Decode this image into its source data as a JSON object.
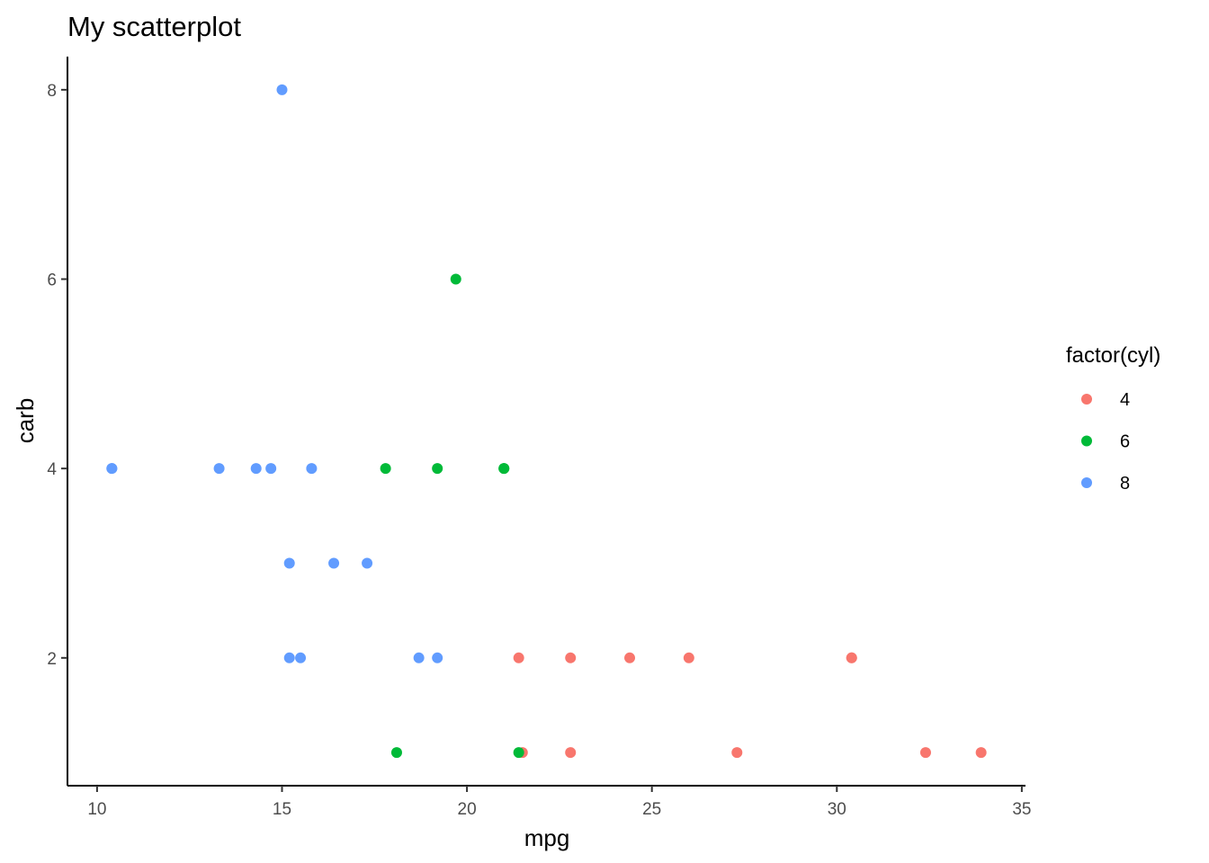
{
  "chart_data": {
    "type": "scatter",
    "title": "My scatterplot",
    "xlabel": "mpg",
    "ylabel": "carb",
    "xlim": [
      9.2,
      35.1
    ],
    "ylim": [
      0.65,
      8.35
    ],
    "xticks": [
      10,
      15,
      20,
      25,
      30,
      35
    ],
    "yticks": [
      2,
      4,
      6,
      8
    ],
    "grid": false,
    "legend": {
      "title": "factor(cyl)",
      "placement": "right"
    },
    "series": [
      {
        "name": "4",
        "color": "#F8766D",
        "points": [
          [
            22.8,
            1
          ],
          [
            24.4,
            2
          ],
          [
            22.8,
            2
          ],
          [
            32.4,
            1
          ],
          [
            30.4,
            2
          ],
          [
            33.9,
            1
          ],
          [
            21.5,
            1
          ],
          [
            27.3,
            1
          ],
          [
            26.0,
            2
          ],
          [
            30.4,
            2
          ],
          [
            21.4,
            2
          ]
        ]
      },
      {
        "name": "6",
        "color": "#00BA38",
        "points": [
          [
            21.0,
            4
          ],
          [
            21.0,
            4
          ],
          [
            21.4,
            1
          ],
          [
            18.1,
            1
          ],
          [
            19.2,
            4
          ],
          [
            17.8,
            4
          ],
          [
            19.7,
            6
          ]
        ]
      },
      {
        "name": "8",
        "color": "#619CFF",
        "points": [
          [
            18.7,
            2
          ],
          [
            14.3,
            4
          ],
          [
            16.4,
            3
          ],
          [
            17.3,
            3
          ],
          [
            15.2,
            3
          ],
          [
            10.4,
            4
          ],
          [
            10.4,
            4
          ],
          [
            14.7,
            4
          ],
          [
            15.5,
            2
          ],
          [
            15.2,
            2
          ],
          [
            13.3,
            4
          ],
          [
            19.2,
            2
          ],
          [
            15.8,
            4
          ],
          [
            15.0,
            8
          ]
        ]
      }
    ]
  }
}
